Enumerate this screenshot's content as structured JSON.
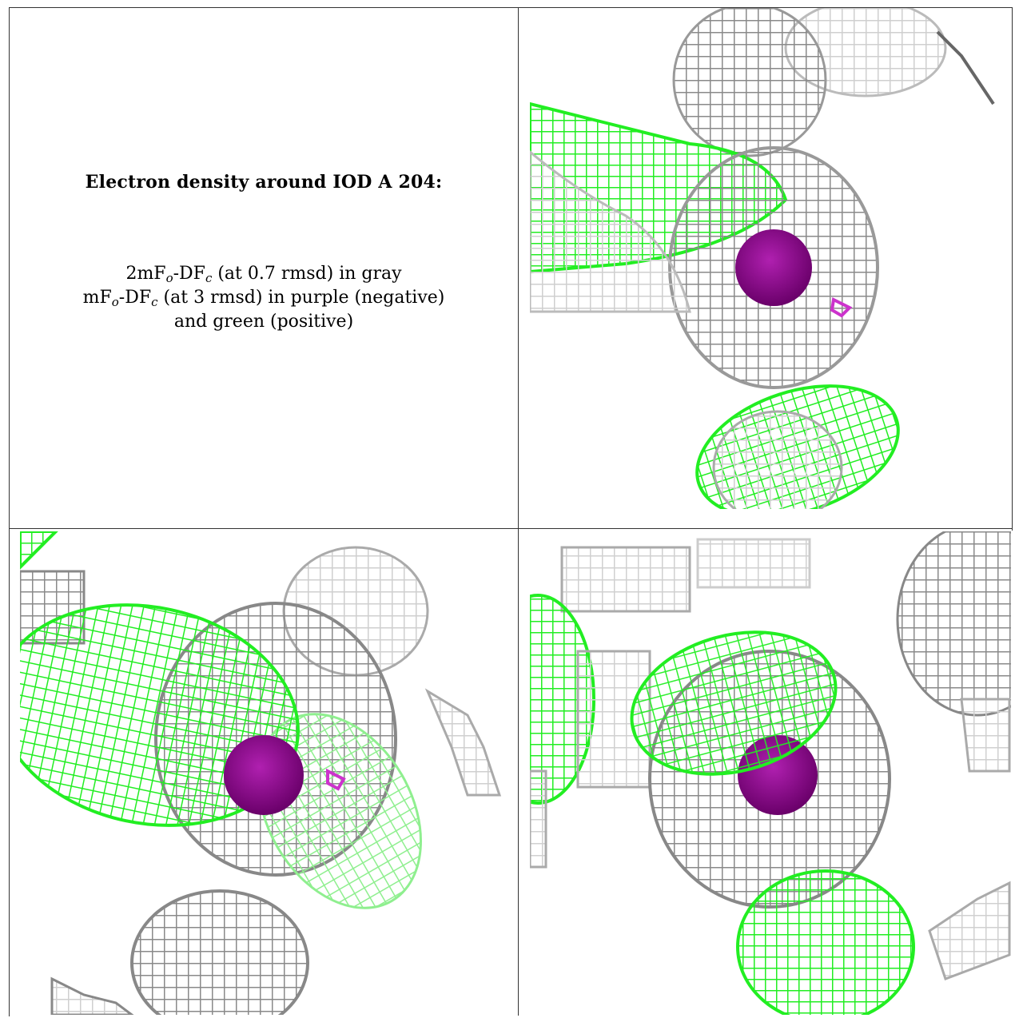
{
  "caption": {
    "title": "Electron density around IOD A 204:",
    "line1_prefix": "2mF",
    "line1_sub1": "o",
    "line1_mid": "-DF",
    "line1_sub2": "c",
    "line1_suffix": " (at 0.7 rmsd) in gray",
    "line2_prefix": "mF",
    "line2_sub1": "o",
    "line2_mid": "-DF",
    "line2_sub2": "c",
    "line2_suffix": " (at 3 rmsd) in purple (negative)",
    "line3": "and green (positive)"
  },
  "colors": {
    "mesh_gray": "#8a8a8a",
    "mesh_gray_light": "#c8c8c8",
    "mesh_green": "#22ee22",
    "atom_purple": "#8a0a8a",
    "mesh_purple": "#cc33cc"
  },
  "panels": [
    {
      "name": "view-top-right",
      "atom_visible": true
    },
    {
      "name": "view-bottom-left",
      "atom_visible": true
    },
    {
      "name": "view-bottom-right",
      "atom_visible": true
    }
  ]
}
